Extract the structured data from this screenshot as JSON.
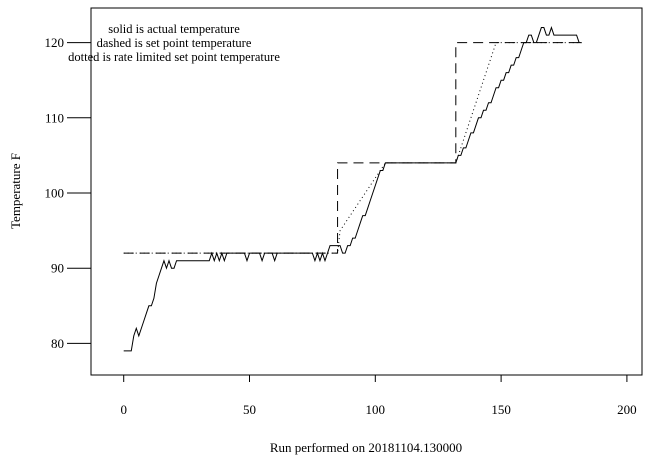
{
  "chart_data": {
    "type": "line",
    "title": "",
    "xlabel": "Run performed on 20181104.130000",
    "ylabel": "Temperature F",
    "xlim": [
      -13,
      206
    ],
    "ylim": [
      75.8,
      124.6
    ],
    "xticks": [
      0,
      50,
      100,
      150,
      200
    ],
    "yticks": [
      80,
      90,
      100,
      110,
      120
    ],
    "grid": false,
    "legend": {
      "placement": "top-left",
      "lines": [
        "solid is actual temperature",
        "dashed is set point temperature",
        "dotted is rate limited set point temperature"
      ]
    },
    "series": [
      {
        "style": "solid",
        "points": [
          [
            0,
            79
          ],
          [
            3,
            79
          ],
          [
            4,
            81
          ],
          [
            5,
            82
          ],
          [
            6,
            81
          ],
          [
            7,
            82
          ],
          [
            8,
            83
          ],
          [
            9,
            84
          ],
          [
            10,
            85
          ],
          [
            11,
            85
          ],
          [
            12,
            86
          ],
          [
            13,
            88
          ],
          [
            14,
            89
          ],
          [
            15,
            90
          ],
          [
            16,
            91
          ],
          [
            17,
            90
          ],
          [
            18,
            91
          ],
          [
            19,
            90
          ],
          [
            20,
            90
          ],
          [
            21,
            91
          ],
          [
            34,
            91
          ],
          [
            35,
            92
          ],
          [
            36,
            91
          ],
          [
            37,
            92
          ],
          [
            38,
            91
          ],
          [
            39,
            92
          ],
          [
            40,
            91
          ],
          [
            41,
            92
          ],
          [
            42,
            92
          ],
          [
            48,
            92
          ],
          [
            49,
            91
          ],
          [
            50,
            92
          ],
          [
            54,
            92
          ],
          [
            55,
            91
          ],
          [
            56,
            92
          ],
          [
            59,
            92
          ],
          [
            60,
            91
          ],
          [
            61,
            92
          ],
          [
            75,
            92
          ],
          [
            76,
            91
          ],
          [
            77,
            92
          ],
          [
            78,
            91
          ],
          [
            79,
            92
          ],
          [
            80,
            91
          ],
          [
            81,
            92
          ],
          [
            82,
            93
          ],
          [
            86,
            93
          ],
          [
            87,
            92
          ],
          [
            88,
            92
          ],
          [
            89,
            93
          ],
          [
            90,
            93
          ],
          [
            91,
            94
          ],
          [
            92,
            94
          ],
          [
            93,
            95
          ],
          [
            94,
            96
          ],
          [
            95,
            97
          ],
          [
            96,
            97
          ],
          [
            97,
            98
          ],
          [
            98,
            99
          ],
          [
            99,
            100
          ],
          [
            100,
            101
          ],
          [
            101,
            102
          ],
          [
            102,
            103
          ],
          [
            103,
            103
          ],
          [
            104,
            104
          ],
          [
            105,
            104
          ],
          [
            132,
            104
          ],
          [
            133,
            105
          ],
          [
            134,
            105
          ],
          [
            135,
            106
          ],
          [
            136,
            106
          ],
          [
            137,
            107
          ],
          [
            138,
            108
          ],
          [
            139,
            108
          ],
          [
            140,
            109
          ],
          [
            141,
            110
          ],
          [
            142,
            110
          ],
          [
            143,
            111
          ],
          [
            144,
            111
          ],
          [
            145,
            112
          ],
          [
            146,
            112
          ],
          [
            147,
            113
          ],
          [
            148,
            114
          ],
          [
            149,
            114
          ],
          [
            150,
            115
          ],
          [
            151,
            115
          ],
          [
            152,
            116
          ],
          [
            153,
            116
          ],
          [
            154,
            117
          ],
          [
            155,
            117
          ],
          [
            156,
            118
          ],
          [
            157,
            118
          ],
          [
            158,
            119
          ],
          [
            159,
            120
          ],
          [
            160,
            120
          ],
          [
            161,
            121
          ],
          [
            162,
            121
          ],
          [
            163,
            120
          ],
          [
            164,
            120
          ],
          [
            165,
            121
          ],
          [
            166,
            122
          ],
          [
            167,
            122
          ],
          [
            168,
            121
          ],
          [
            169,
            121
          ],
          [
            170,
            122
          ],
          [
            171,
            121
          ],
          [
            172,
            121
          ],
          [
            173,
            121
          ],
          [
            180,
            121
          ],
          [
            181,
            120
          ],
          [
            182,
            120
          ]
        ]
      },
      {
        "style": "dashed",
        "points": [
          [
            0,
            92
          ],
          [
            85,
            92
          ],
          [
            85,
            104
          ],
          [
            132,
            104
          ],
          [
            132,
            120
          ],
          [
            182,
            120
          ]
        ]
      },
      {
        "style": "dotted",
        "points": [
          [
            0,
            92
          ],
          [
            85,
            92
          ],
          [
            86,
            95
          ],
          [
            88,
            96
          ],
          [
            90,
            97
          ],
          [
            92,
            98
          ],
          [
            94,
            99
          ],
          [
            96,
            100
          ],
          [
            98,
            101
          ],
          [
            100,
            102
          ],
          [
            102,
            103
          ],
          [
            104,
            104
          ],
          [
            132,
            104
          ],
          [
            134,
            106
          ],
          [
            136,
            108
          ],
          [
            138,
            110
          ],
          [
            140,
            112
          ],
          [
            142,
            114
          ],
          [
            144,
            116
          ],
          [
            146,
            118
          ],
          [
            148,
            120
          ],
          [
            182,
            120
          ]
        ]
      }
    ]
  }
}
